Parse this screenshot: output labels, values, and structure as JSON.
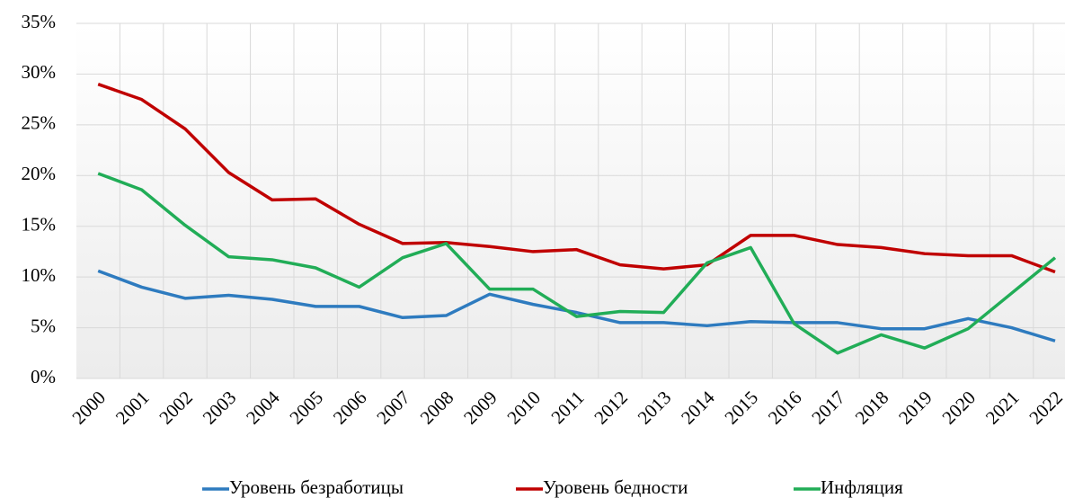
{
  "chart_data": {
    "type": "line",
    "categories": [
      "2000",
      "2001",
      "2002",
      "2003",
      "2004",
      "2005",
      "2006",
      "2007",
      "2008",
      "2009",
      "2010",
      "2011",
      "2012",
      "2013",
      "2014",
      "2015",
      "2016",
      "2017",
      "2018",
      "2019",
      "2020",
      "2021",
      "2022"
    ],
    "series": [
      {
        "name": "Уровень безработицы",
        "color": "#2e7bbf",
        "values": [
          10.6,
          9.0,
          7.9,
          8.2,
          7.8,
          7.1,
          7.1,
          6.0,
          6.2,
          8.3,
          7.3,
          6.5,
          5.5,
          5.5,
          5.2,
          5.6,
          5.5,
          5.5,
          4.9,
          4.9,
          5.9,
          5.0,
          3.7
        ]
      },
      {
        "name": "Уровень бедности",
        "color": "#c00000",
        "values": [
          29.0,
          27.5,
          24.6,
          20.3,
          17.6,
          17.7,
          15.2,
          13.3,
          13.4,
          13.0,
          12.5,
          12.7,
          11.2,
          10.8,
          11.2,
          14.1,
          14.1,
          13.2,
          12.9,
          12.3,
          12.1,
          12.1,
          10.5
        ]
      },
      {
        "name": "Инфляция",
        "color": "#21ad57",
        "values": [
          20.2,
          18.6,
          15.1,
          12.0,
          11.7,
          10.9,
          9.0,
          11.9,
          13.3,
          8.8,
          8.8,
          6.1,
          6.6,
          6.5,
          11.4,
          12.9,
          5.4,
          2.5,
          4.3,
          3.0,
          4.9,
          8.4,
          11.9
        ]
      }
    ],
    "ylim": [
      0,
      35
    ],
    "yticks": [
      {
        "value": 0,
        "label": "0%"
      },
      {
        "value": 5,
        "label": "5%"
      },
      {
        "value": 10,
        "label": "10%"
      },
      {
        "value": 15,
        "label": "15%"
      },
      {
        "value": 20,
        "label": "20%"
      },
      {
        "value": 25,
        "label": "25%"
      },
      {
        "value": 30,
        "label": "30%"
      },
      {
        "value": 35,
        "label": "35%"
      }
    ],
    "grid": true,
    "legend": "bottom"
  }
}
